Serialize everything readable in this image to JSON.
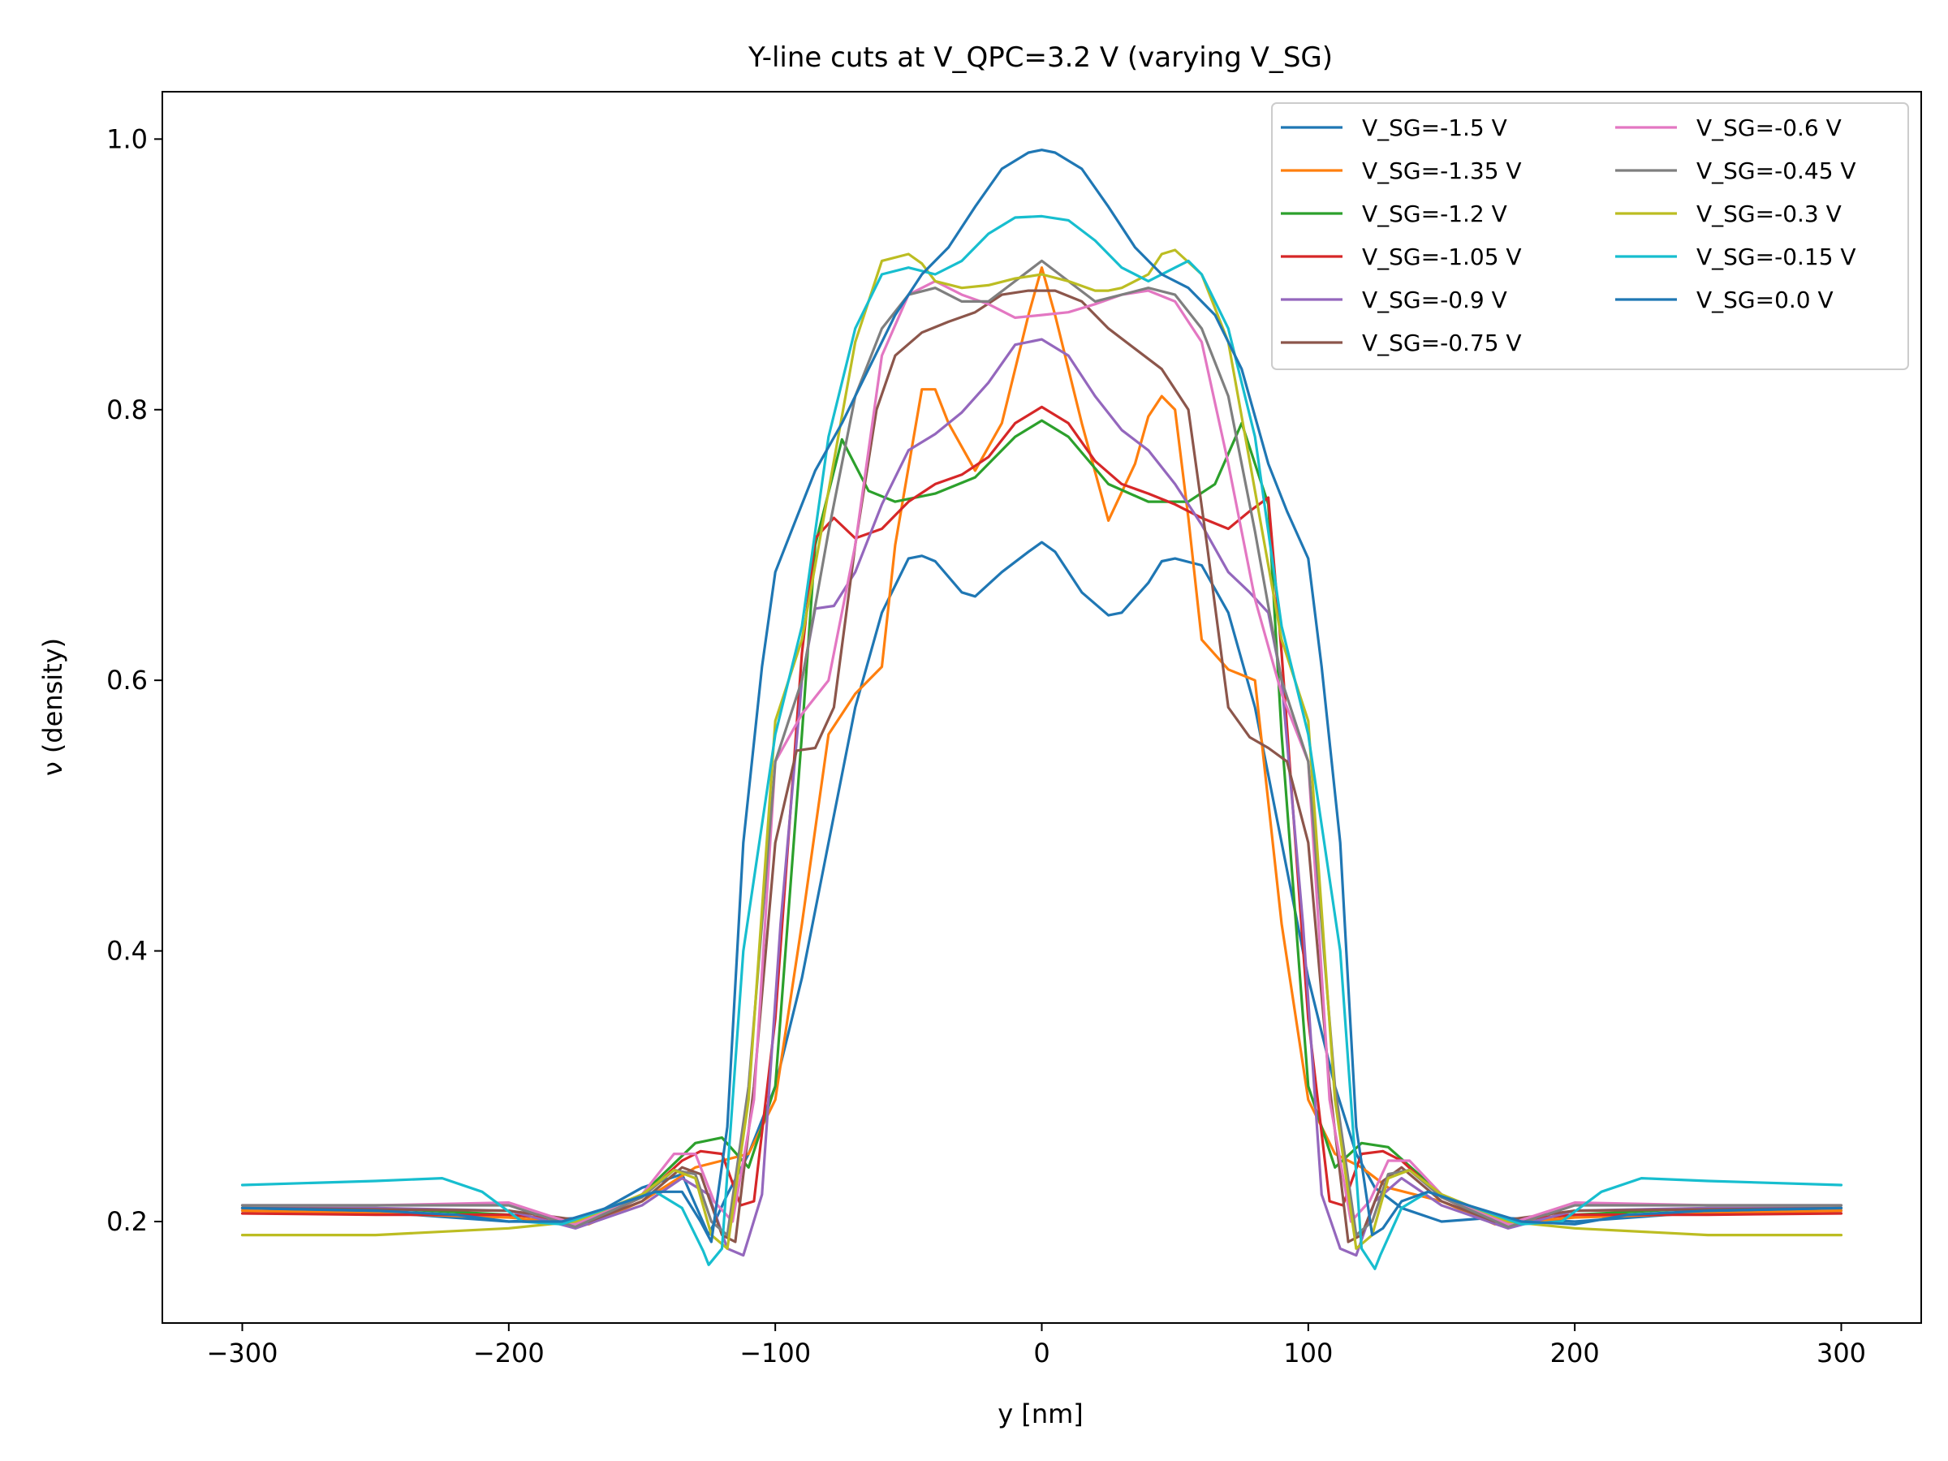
{
  "chart_data": {
    "type": "line",
    "title": "Y-line cuts at V_QPC=3.2 V (varying V_SG)",
    "xlabel": "y [nm]",
    "ylabel": "ν (density)",
    "xlim": [
      -330,
      330
    ],
    "ylim": [
      0.125,
      1.035
    ],
    "xticks": [
      -300,
      -200,
      -100,
      0,
      100,
      200,
      300
    ],
    "xtick_labels": [
      "−300",
      "−200",
      "−100",
      "0",
      "100",
      "200",
      "300"
    ],
    "yticks": [
      0.2,
      0.4,
      0.6,
      0.8,
      1.0
    ],
    "ytick_labels": [
      "0.2",
      "0.4",
      "0.6",
      "0.8",
      "1.0"
    ],
    "grid": false,
    "legend_position": "top-right",
    "legend_columns": 2,
    "series": [
      {
        "name": "V_SG=-1.5 V",
        "color": "#1f77b4",
        "x": [
          -300,
          -250,
          -200,
          -170,
          -150,
          -135,
          -125,
          -118,
          -110,
          -100,
          -90,
          -80,
          -70,
          -60,
          -50,
          -45,
          -40,
          -30,
          -25,
          -15,
          -5,
          0,
          5,
          15,
          25,
          30,
          40,
          45,
          50,
          60,
          70,
          80,
          90,
          100,
          110,
          118,
          125,
          135,
          150,
          170,
          200,
          250,
          300
        ],
        "y": [
          0.208,
          0.207,
          0.2,
          0.203,
          0.225,
          0.235,
          0.19,
          0.22,
          0.25,
          0.3,
          0.38,
          0.48,
          0.58,
          0.65,
          0.69,
          0.692,
          0.688,
          0.665,
          0.662,
          0.68,
          0.695,
          0.702,
          0.695,
          0.665,
          0.648,
          0.65,
          0.672,
          0.688,
          0.69,
          0.685,
          0.65,
          0.58,
          0.48,
          0.38,
          0.3,
          0.25,
          0.225,
          0.21,
          0.2,
          0.203,
          0.2,
          0.207,
          0.208
        ]
      },
      {
        "name": "V_SG=-1.35 V",
        "color": "#ff7f0e",
        "x": [
          -300,
          -250,
          -200,
          -170,
          -150,
          -130,
          -120,
          -110,
          -100,
          -90,
          -80,
          -70,
          -60,
          -55,
          -45,
          -40,
          -35,
          -25,
          -15,
          -5,
          0,
          5,
          15,
          25,
          35,
          40,
          45,
          50,
          55,
          60,
          70,
          80,
          90,
          100,
          110,
          120,
          130,
          150,
          170,
          200,
          250,
          300
        ],
        "y": [
          0.208,
          0.206,
          0.203,
          0.198,
          0.215,
          0.24,
          0.245,
          0.25,
          0.29,
          0.42,
          0.56,
          0.59,
          0.61,
          0.7,
          0.815,
          0.815,
          0.79,
          0.755,
          0.79,
          0.87,
          0.905,
          0.87,
          0.79,
          0.718,
          0.76,
          0.795,
          0.81,
          0.8,
          0.72,
          0.63,
          0.608,
          0.6,
          0.42,
          0.29,
          0.25,
          0.24,
          0.225,
          0.215,
          0.198,
          0.203,
          0.206,
          0.208
        ]
      },
      {
        "name": "V_SG=-1.2 V",
        "color": "#2ca02c",
        "x": [
          -300,
          -250,
          -200,
          -170,
          -150,
          -130,
          -120,
          -110,
          -100,
          -90,
          -85,
          -75,
          -65,
          -55,
          -40,
          -25,
          -10,
          0,
          10,
          25,
          40,
          55,
          65,
          75,
          85,
          90,
          100,
          110,
          120,
          130,
          150,
          170,
          200,
          250,
          300
        ],
        "y": [
          0.21,
          0.21,
          0.205,
          0.2,
          0.22,
          0.258,
          0.262,
          0.24,
          0.3,
          0.56,
          0.7,
          0.778,
          0.74,
          0.732,
          0.738,
          0.75,
          0.78,
          0.792,
          0.78,
          0.745,
          0.732,
          0.732,
          0.745,
          0.79,
          0.73,
          0.56,
          0.3,
          0.24,
          0.258,
          0.255,
          0.22,
          0.2,
          0.205,
          0.21,
          0.21
        ]
      },
      {
        "name": "V_SG=-1.05 V",
        "color": "#d62728",
        "x": [
          -300,
          -250,
          -200,
          -170,
          -150,
          -135,
          -128,
          -120,
          -113,
          -108,
          -100,
          -90,
          -85,
          -78,
          -70,
          -60,
          -50,
          -40,
          -30,
          -20,
          -10,
          0,
          10,
          20,
          30,
          40,
          50,
          60,
          70,
          78,
          85,
          90,
          100,
          108,
          113,
          120,
          128,
          135,
          150,
          170,
          200,
          250,
          300
        ],
        "y": [
          0.206,
          0.205,
          0.205,
          0.2,
          0.218,
          0.245,
          0.252,
          0.25,
          0.212,
          0.215,
          0.35,
          0.62,
          0.705,
          0.72,
          0.705,
          0.712,
          0.732,
          0.745,
          0.752,
          0.765,
          0.79,
          0.802,
          0.79,
          0.762,
          0.745,
          0.738,
          0.73,
          0.72,
          0.712,
          0.725,
          0.735,
          0.62,
          0.35,
          0.215,
          0.212,
          0.25,
          0.252,
          0.245,
          0.218,
          0.2,
          0.205,
          0.205,
          0.206
        ]
      },
      {
        "name": "V_SG=-0.9 V",
        "color": "#9467bd",
        "x": [
          -300,
          -250,
          -200,
          -175,
          -150,
          -135,
          -125,
          -118,
          -112,
          -105,
          -98,
          -90,
          -85,
          -78,
          -70,
          -60,
          -50,
          -40,
          -30,
          -20,
          -10,
          0,
          10,
          20,
          30,
          40,
          50,
          60,
          70,
          78,
          85,
          90,
          98,
          105,
          112,
          118,
          125,
          135,
          150,
          175,
          200,
          250,
          300
        ],
        "y": [
          0.21,
          0.21,
          0.208,
          0.195,
          0.212,
          0.232,
          0.22,
          0.18,
          0.175,
          0.22,
          0.42,
          0.6,
          0.653,
          0.655,
          0.68,
          0.73,
          0.77,
          0.782,
          0.798,
          0.82,
          0.848,
          0.852,
          0.84,
          0.81,
          0.785,
          0.77,
          0.745,
          0.715,
          0.68,
          0.665,
          0.65,
          0.6,
          0.42,
          0.22,
          0.18,
          0.175,
          0.215,
          0.232,
          0.212,
          0.195,
          0.208,
          0.21,
          0.21
        ]
      },
      {
        "name": "V_SG=-0.75 V",
        "color": "#8c564b",
        "x": [
          -300,
          -250,
          -200,
          -170,
          -150,
          -135,
          -128,
          -120,
          -115,
          -108,
          -100,
          -92,
          -85,
          -78,
          -70,
          -62,
          -55,
          -45,
          -35,
          -25,
          -15,
          -5,
          0,
          5,
          15,
          25,
          35,
          45,
          55,
          62,
          70,
          78,
          85,
          92,
          100,
          108,
          115,
          120,
          128,
          135,
          150,
          170,
          200,
          250,
          300
        ],
        "y": [
          0.21,
          0.209,
          0.208,
          0.2,
          0.215,
          0.24,
          0.235,
          0.19,
          0.185,
          0.3,
          0.48,
          0.548,
          0.55,
          0.58,
          0.7,
          0.8,
          0.84,
          0.857,
          0.865,
          0.872,
          0.885,
          0.888,
          0.888,
          0.888,
          0.88,
          0.86,
          0.845,
          0.83,
          0.8,
          0.7,
          0.58,
          0.558,
          0.55,
          0.54,
          0.48,
          0.3,
          0.185,
          0.19,
          0.23,
          0.24,
          0.215,
          0.2,
          0.208,
          0.209,
          0.21
        ]
      },
      {
        "name": "V_SG=-0.6 V",
        "color": "#e377c2",
        "x": [
          -300,
          -250,
          -200,
          -175,
          -150,
          -138,
          -130,
          -123,
          -116,
          -108,
          -100,
          -90,
          -80,
          -70,
          -60,
          -50,
          -40,
          -30,
          -20,
          -10,
          0,
          10,
          20,
          30,
          40,
          50,
          60,
          70,
          80,
          90,
          100,
          108,
          116,
          123,
          130,
          138,
          150,
          175,
          200,
          250,
          300
        ],
        "y": [
          0.212,
          0.212,
          0.214,
          0.198,
          0.22,
          0.25,
          0.25,
          0.215,
          0.2,
          0.29,
          0.54,
          0.575,
          0.6,
          0.7,
          0.84,
          0.885,
          0.895,
          0.885,
          0.878,
          0.868,
          0.87,
          0.872,
          0.878,
          0.885,
          0.888,
          0.88,
          0.85,
          0.76,
          0.66,
          0.59,
          0.54,
          0.29,
          0.2,
          0.215,
          0.245,
          0.245,
          0.22,
          0.198,
          0.214,
          0.212,
          0.212
        ]
      },
      {
        "name": "V_SG=-0.45 V",
        "color": "#7f7f7f",
        "x": [
          -300,
          -250,
          -200,
          -175,
          -150,
          -138,
          -130,
          -124,
          -118,
          -110,
          -100,
          -90,
          -80,
          -70,
          -60,
          -50,
          -40,
          -30,
          -20,
          -10,
          0,
          10,
          20,
          30,
          40,
          50,
          60,
          70,
          80,
          90,
          100,
          110,
          118,
          124,
          130,
          138,
          150,
          175,
          200,
          250,
          300
        ],
        "y": [
          0.212,
          0.212,
          0.212,
          0.196,
          0.218,
          0.238,
          0.235,
          0.2,
          0.19,
          0.3,
          0.54,
          0.6,
          0.71,
          0.81,
          0.86,
          0.885,
          0.89,
          0.88,
          0.88,
          0.895,
          0.91,
          0.895,
          0.88,
          0.885,
          0.89,
          0.885,
          0.86,
          0.81,
          0.71,
          0.6,
          0.54,
          0.3,
          0.19,
          0.2,
          0.235,
          0.238,
          0.218,
          0.196,
          0.212,
          0.212,
          0.212
        ]
      },
      {
        "name": "V_SG=-0.3 V",
        "color": "#bcbd22",
        "x": [
          -300,
          -250,
          -200,
          -175,
          -150,
          -138,
          -130,
          -124,
          -118,
          -110,
          -100,
          -90,
          -80,
          -70,
          -60,
          -50,
          -45,
          -40,
          -30,
          -20,
          -10,
          0,
          10,
          20,
          25,
          30,
          40,
          45,
          50,
          60,
          70,
          80,
          90,
          100,
          110,
          118,
          124,
          130,
          138,
          150,
          175,
          200,
          250,
          300
        ],
        "y": [
          0.19,
          0.19,
          0.195,
          0.2,
          0.22,
          0.238,
          0.232,
          0.19,
          0.18,
          0.29,
          0.57,
          0.63,
          0.74,
          0.85,
          0.91,
          0.915,
          0.908,
          0.895,
          0.89,
          0.892,
          0.897,
          0.9,
          0.895,
          0.888,
          0.888,
          0.89,
          0.9,
          0.915,
          0.918,
          0.9,
          0.85,
          0.74,
          0.63,
          0.57,
          0.29,
          0.18,
          0.19,
          0.232,
          0.238,
          0.22,
          0.2,
          0.195,
          0.19,
          0.19
        ]
      },
      {
        "name": "V_SG=-0.15 V",
        "color": "#17becf",
        "x": [
          -300,
          -250,
          -225,
          -210,
          -195,
          -180,
          -160,
          -145,
          -135,
          -127,
          -125,
          -120,
          -112,
          -100,
          -90,
          -80,
          -70,
          -60,
          -50,
          -40,
          -30,
          -20,
          -10,
          0,
          10,
          20,
          30,
          40,
          50,
          55,
          60,
          70,
          80,
          90,
          100,
          112,
          120,
          125,
          127,
          135,
          145,
          160,
          180,
          195,
          210,
          225,
          250,
          300
        ],
        "y": [
          0.227,
          0.23,
          0.232,
          0.222,
          0.2,
          0.198,
          0.212,
          0.222,
          0.21,
          0.178,
          0.168,
          0.18,
          0.4,
          0.56,
          0.64,
          0.78,
          0.86,
          0.9,
          0.905,
          0.9,
          0.91,
          0.93,
          0.942,
          0.943,
          0.94,
          0.925,
          0.905,
          0.895,
          0.905,
          0.91,
          0.9,
          0.86,
          0.78,
          0.64,
          0.56,
          0.4,
          0.18,
          0.165,
          0.175,
          0.21,
          0.222,
          0.212,
          0.198,
          0.2,
          0.222,
          0.232,
          0.23,
          0.227
        ]
      },
      {
        "name": "V_SG=0.0 V",
        "color": "#1f77b4",
        "x": [
          -300,
          -250,
          -220,
          -200,
          -180,
          -160,
          -145,
          -135,
          -128,
          -124,
          -118,
          -112,
          -105,
          -100,
          -92,
          -85,
          -75,
          -65,
          -55,
          -45,
          -35,
          -25,
          -15,
          -5,
          0,
          5,
          15,
          25,
          35,
          45,
          55,
          65,
          75,
          85,
          92,
          100,
          105,
          112,
          118,
          124,
          128,
          135,
          145,
          160,
          180,
          200,
          220,
          250,
          300
        ],
        "y": [
          0.21,
          0.208,
          0.205,
          0.2,
          0.2,
          0.212,
          0.222,
          0.222,
          0.2,
          0.185,
          0.27,
          0.48,
          0.61,
          0.68,
          0.72,
          0.755,
          0.79,
          0.83,
          0.87,
          0.9,
          0.92,
          0.95,
          0.978,
          0.99,
          0.992,
          0.99,
          0.978,
          0.95,
          0.92,
          0.9,
          0.89,
          0.87,
          0.83,
          0.76,
          0.725,
          0.69,
          0.61,
          0.48,
          0.27,
          0.19,
          0.195,
          0.215,
          0.222,
          0.212,
          0.2,
          0.198,
          0.205,
          0.208,
          0.21
        ]
      }
    ]
  }
}
